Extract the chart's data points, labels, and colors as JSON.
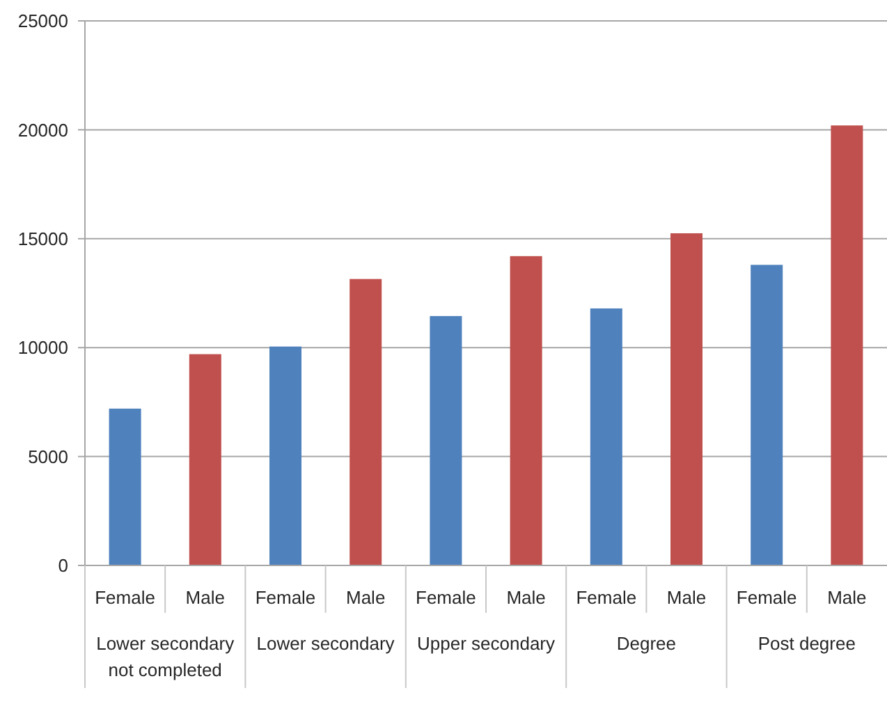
{
  "chart_data": {
    "type": "bar",
    "categories": [
      "Lower secondary not completed",
      "Lower secondary",
      "Upper secondary",
      "Degree",
      "Post degree"
    ],
    "series": [
      {
        "name": "Female",
        "color": "#4f81bd",
        "values": [
          7200,
          10050,
          11450,
          11800,
          13800
        ]
      },
      {
        "name": "Male",
        "color": "#c0504d",
        "values": [
          9700,
          13150,
          14200,
          15250,
          20200
        ]
      }
    ],
    "ylim": [
      0,
      25000
    ],
    "yticks": [
      0,
      5000,
      10000,
      15000,
      20000,
      25000
    ],
    "grid": "y"
  }
}
